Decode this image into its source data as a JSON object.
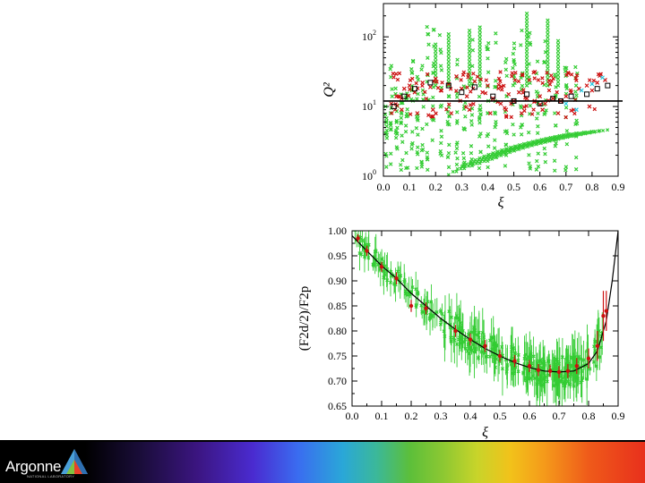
{
  "chart_data": [
    {
      "type": "scatter",
      "xlabel": "ξ",
      "ylabel": "Q²",
      "xlim": [
        0.0,
        0.9
      ],
      "ylim": [
        1,
        300
      ],
      "yscale": "log",
      "xticks": [
        "0.0",
        "0.1",
        "0.2",
        "0.3",
        "0.4",
        "0.5",
        "0.6",
        "0.7",
        "0.8",
        "0.9"
      ],
      "yticks": [
        {
          "base": "10",
          "exp": "0",
          "value": 1
        },
        {
          "base": "10",
          "exp": "1",
          "value": 10
        },
        {
          "base": "10",
          "exp": "2",
          "value": 100
        }
      ],
      "cut_line_Q2": 12,
      "series": [
        {
          "color": "#2ecc40",
          "marker": "x",
          "note": "green"
        },
        {
          "color": "#cc1010",
          "marker": "x",
          "note": "red"
        },
        {
          "color": "#000000",
          "marker": "square",
          "note": "black"
        },
        {
          "color": "#20c8e0",
          "marker": "x",
          "note": "cyan"
        }
      ],
      "red_points": [
        [
          0.03,
          11
        ],
        [
          0.05,
          14
        ],
        [
          0.08,
          18
        ],
        [
          0.1,
          20
        ],
        [
          0.12,
          16
        ],
        [
          0.15,
          22
        ],
        [
          0.18,
          19
        ],
        [
          0.2,
          25
        ],
        [
          0.22,
          17
        ],
        [
          0.25,
          21
        ],
        [
          0.28,
          27
        ],
        [
          0.3,
          18
        ],
        [
          0.32,
          14
        ],
        [
          0.35,
          23
        ],
        [
          0.38,
          16
        ],
        [
          0.4,
          20
        ],
        [
          0.42,
          13
        ],
        [
          0.45,
          11
        ],
        [
          0.48,
          15
        ],
        [
          0.5,
          12
        ],
        [
          0.52,
          16
        ],
        [
          0.55,
          13
        ],
        [
          0.58,
          12
        ],
        [
          0.6,
          14
        ],
        [
          0.62,
          11
        ],
        [
          0.65,
          13
        ],
        [
          0.68,
          12
        ],
        [
          0.7,
          14
        ],
        [
          0.72,
          16
        ],
        [
          0.75,
          18
        ],
        [
          0.78,
          20
        ],
        [
          0.8,
          17
        ],
        [
          0.82,
          22
        ],
        [
          0.85,
          24
        ],
        [
          0.07,
          9
        ],
        [
          0.13,
          8
        ],
        [
          0.19,
          9
        ],
        [
          0.26,
          8
        ],
        [
          0.33,
          9
        ],
        [
          0.41,
          8
        ],
        [
          0.47,
          9
        ],
        [
          0.53,
          8
        ],
        [
          0.61,
          9
        ],
        [
          0.67,
          8
        ],
        [
          0.73,
          9
        ],
        [
          0.79,
          10
        ]
      ],
      "black_squares": [
        [
          0.04,
          10
        ],
        [
          0.08,
          14
        ],
        [
          0.12,
          18
        ],
        [
          0.18,
          22
        ],
        [
          0.25,
          20
        ],
        [
          0.3,
          16
        ],
        [
          0.35,
          19
        ],
        [
          0.42,
          14
        ],
        [
          0.5,
          12
        ],
        [
          0.55,
          15
        ],
        [
          0.6,
          11
        ],
        [
          0.65,
          13
        ],
        [
          0.68,
          12
        ],
        [
          0.72,
          14
        ],
        [
          0.78,
          15
        ],
        [
          0.82,
          18
        ],
        [
          0.86,
          20
        ]
      ],
      "cyan_points": [
        [
          0.76,
          17
        ],
        [
          0.8,
          21
        ],
        [
          0.84,
          26
        ],
        [
          0.7,
          11
        ],
        [
          0.74,
          9
        ]
      ]
    },
    {
      "type": "scatter",
      "xlabel": "ξ",
      "ylabel": "(F2d/2)/F2p",
      "xlim": [
        0.0,
        0.9
      ],
      "ylim": [
        0.65,
        1.0
      ],
      "xticks": [
        "0.0",
        "0.1",
        "0.2",
        "0.3",
        "0.4",
        "0.5",
        "0.6",
        "0.7",
        "0.8",
        "0.9"
      ],
      "yticks": [
        "0.65",
        "0.70",
        "0.75",
        "0.80",
        "0.85",
        "0.90",
        "0.95",
        "1.00"
      ],
      "fit_curve": [
        [
          0.0,
          0.99
        ],
        [
          0.05,
          0.96
        ],
        [
          0.1,
          0.93
        ],
        [
          0.15,
          0.905
        ],
        [
          0.2,
          0.875
        ],
        [
          0.25,
          0.85
        ],
        [
          0.3,
          0.825
        ],
        [
          0.35,
          0.803
        ],
        [
          0.4,
          0.783
        ],
        [
          0.45,
          0.765
        ],
        [
          0.5,
          0.75
        ],
        [
          0.55,
          0.737
        ],
        [
          0.6,
          0.727
        ],
        [
          0.65,
          0.72
        ],
        [
          0.7,
          0.718
        ],
        [
          0.75,
          0.72
        ],
        [
          0.8,
          0.735
        ],
        [
          0.83,
          0.76
        ],
        [
          0.86,
          0.82
        ],
        [
          0.88,
          0.9
        ],
        [
          0.9,
          1.0
        ]
      ],
      "red_points": [
        [
          0.02,
          0.985
        ],
        [
          0.05,
          0.96
        ],
        [
          0.1,
          0.928
        ],
        [
          0.15,
          0.905
        ],
        [
          0.2,
          0.85
        ],
        [
          0.25,
          0.845
        ],
        [
          0.35,
          0.8
        ],
        [
          0.4,
          0.783
        ],
        [
          0.45,
          0.77
        ],
        [
          0.5,
          0.75
        ],
        [
          0.55,
          0.74
        ],
        [
          0.6,
          0.73
        ],
        [
          0.63,
          0.722
        ],
        [
          0.67,
          0.72
        ],
        [
          0.7,
          0.718
        ],
        [
          0.73,
          0.72
        ],
        [
          0.76,
          0.73
        ],
        [
          0.8,
          0.745
        ],
        [
          0.83,
          0.77
        ],
        [
          0.85,
          0.83
        ],
        [
          0.86,
          0.84
        ]
      ],
      "red_err": [
        0.008,
        0.01,
        0.01,
        0.012,
        0.012,
        0.012,
        0.012,
        0.012,
        0.012,
        0.012,
        0.012,
        0.012,
        0.012,
        0.012,
        0.012,
        0.014,
        0.016,
        0.02,
        0.03,
        0.05,
        0.04
      ]
    }
  ],
  "footer": {
    "logo_text": "Argonne",
    "logo_sub": "NATIONAL LABORATORY"
  }
}
